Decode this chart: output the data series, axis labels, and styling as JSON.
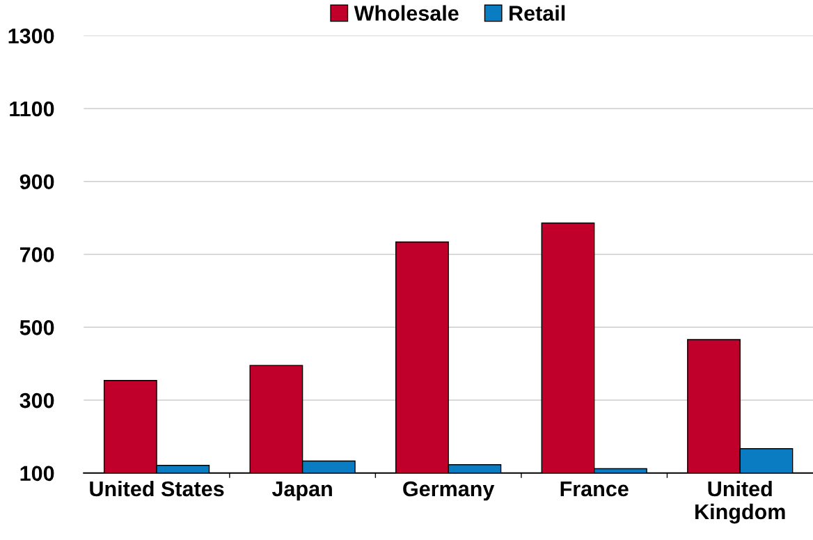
{
  "chart_data": {
    "type": "bar",
    "categories": [
      "United States",
      "Japan",
      "Germany",
      "France",
      "United\nKingdom"
    ],
    "series": [
      {
        "name": "Wholesale",
        "color": "#c0002a",
        "values": [
          354,
          395,
          734,
          786,
          466
        ]
      },
      {
        "name": "Retail",
        "color": "#0a7cc1",
        "values": [
          121,
          133,
          123,
          112,
          167
        ]
      }
    ],
    "ylim": [
      100,
      1300
    ],
    "yticks": [
      100,
      300,
      500,
      700,
      900,
      1100,
      1300
    ],
    "grid": "y",
    "legend": "top"
  }
}
